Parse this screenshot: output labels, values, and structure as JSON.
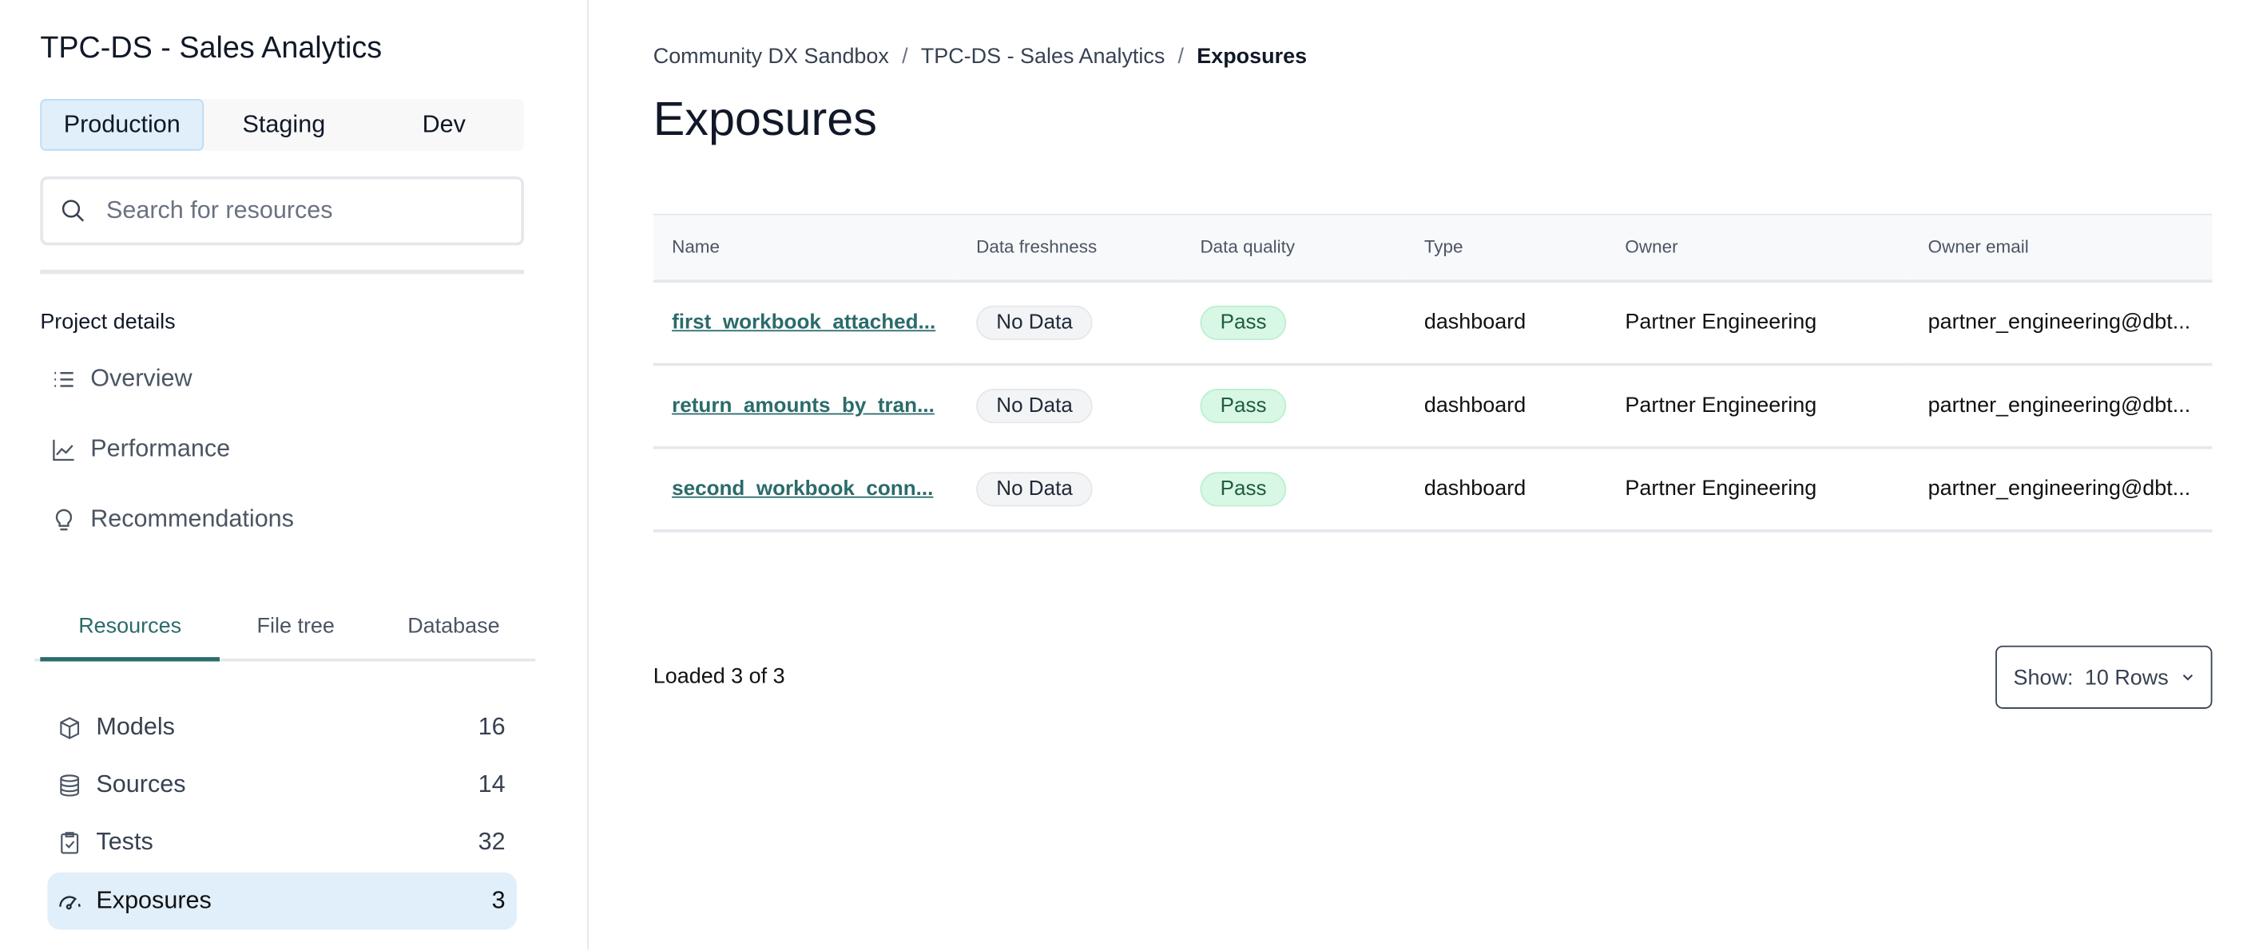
{
  "sidebar": {
    "project_title": "TPC-DS - Sales Analytics",
    "environments": [
      "Production",
      "Staging",
      "Dev"
    ],
    "active_environment": "Production",
    "search_placeholder": "Search for resources",
    "project_details_label": "Project details",
    "nav": [
      {
        "label": "Overview",
        "icon": "list-icon"
      },
      {
        "label": "Performance",
        "icon": "chart-line-icon"
      },
      {
        "label": "Recommendations",
        "icon": "lightbulb-icon"
      }
    ],
    "tabs": [
      "Resources",
      "File tree",
      "Database"
    ],
    "active_tab": "Resources",
    "resources": [
      {
        "label": "Models",
        "count": "16",
        "icon": "cube-icon"
      },
      {
        "label": "Sources",
        "count": "14",
        "icon": "database-icon"
      },
      {
        "label": "Tests",
        "count": "32",
        "icon": "clipboard-check-icon"
      },
      {
        "label": "Exposures",
        "count": "3",
        "icon": "gauge-icon",
        "active": true
      }
    ]
  },
  "main": {
    "breadcrumb": [
      "Community DX Sandbox",
      "TPC-DS - Sales Analytics",
      "Exposures"
    ],
    "title": "Exposures",
    "table": {
      "columns": [
        "Name",
        "Data freshness",
        "Data quality",
        "Type",
        "Owner",
        "Owner email"
      ],
      "rows": [
        [
          "first_workbook_attached...",
          "No Data",
          "Pass",
          "dashboard",
          "Partner Engineering",
          "partner_engineering@dbt..."
        ],
        [
          "return_amounts_by_tran...",
          "No Data",
          "Pass",
          "dashboard",
          "Partner Engineering",
          "partner_engineering@dbt..."
        ],
        [
          "second_workbook_conn...",
          "No Data",
          "Pass",
          "dashboard",
          "Partner Engineering",
          "partner_engineering@dbt..."
        ]
      ]
    },
    "loaded_text": "Loaded 3 of 3",
    "show_label": "Show:",
    "show_value": "10 Rows"
  },
  "colors": {
    "accent": "#2b6b6b",
    "active_bg": "#e1effb",
    "pass_bg": "#d9f7e5"
  }
}
